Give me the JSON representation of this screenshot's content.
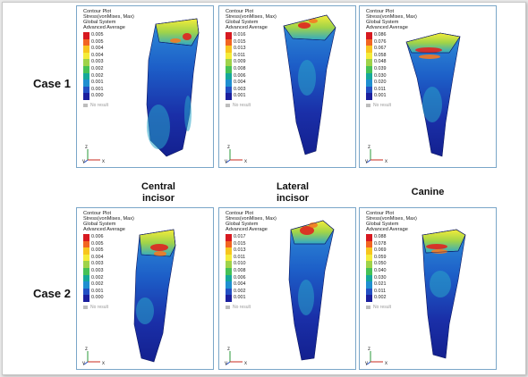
{
  "cases": [
    {
      "label": "Case 1"
    },
    {
      "label": "Case 2"
    }
  ],
  "columns": [
    {
      "line1": "Central",
      "line2": "incisor"
    },
    {
      "line1": "Lateral",
      "line2": "incisor"
    },
    {
      "line1": "Canine",
      "line2": ""
    }
  ],
  "panels": [
    {
      "header": [
        "Contour Plot",
        "Stress(vonMises, Max)",
        "Global System",
        "Advanced Average"
      ],
      "legend": [
        "0.005",
        "0.005",
        "0.004",
        "0.004",
        "0.003",
        "0.002",
        "0.002",
        "0.001",
        "0.001",
        "0.000"
      ],
      "no_result": "No result",
      "triad": {
        "z": "z",
        "y": "y",
        "x": "x"
      }
    },
    {
      "header": [
        "Contour Plot",
        "Stress(vonMises, Max)",
        "Global System",
        "Advanced Average"
      ],
      "legend": [
        "0.016",
        "0.015",
        "0.013",
        "0.011",
        "0.009",
        "0.008",
        "0.006",
        "0.004",
        "0.003",
        "0.001"
      ],
      "no_result": "No result",
      "triad": {
        "z": "z",
        "y": "y",
        "x": "x"
      }
    },
    {
      "header": [
        "Contour Plot",
        "Stress(vonMises, Max)",
        "Global System",
        "Advanced Average"
      ],
      "legend": [
        "0.086",
        "0.076",
        "0.067",
        "0.058",
        "0.048",
        "0.039",
        "0.030",
        "0.020",
        "0.011",
        "0.001"
      ],
      "no_result": "No result",
      "triad": {
        "z": "z",
        "y": "y",
        "x": "x"
      }
    },
    {
      "header": [
        "Contour Plot",
        "Stress(vonMises, Max)",
        "Global System",
        "Advanced Average"
      ],
      "legend": [
        "0.006",
        "0.005",
        "0.005",
        "0.004",
        "0.003",
        "0.003",
        "0.002",
        "0.002",
        "0.001",
        "0.000"
      ],
      "no_result": "No result",
      "triad": {
        "z": "z",
        "y": "y",
        "x": "x"
      }
    },
    {
      "header": [
        "Contour Plot",
        "Stress(vonMises, Max)",
        "Global System",
        "Advanced Average"
      ],
      "legend": [
        "0.017",
        "0.015",
        "0.013",
        "0.011",
        "0.010",
        "0.008",
        "0.006",
        "0.004",
        "0.002",
        "0.001"
      ],
      "no_result": "No result",
      "triad": {
        "z": "z",
        "y": "y",
        "x": "x"
      }
    },
    {
      "header": [
        "Contour Plot",
        "Stress(vonMises, Max)",
        "Global System",
        "Advanced Average"
      ],
      "legend": [
        "0.088",
        "0.078",
        "0.069",
        "0.059",
        "0.050",
        "0.040",
        "0.030",
        "0.021",
        "0.011",
        "0.002"
      ],
      "no_result": "No result",
      "triad": {
        "z": "z",
        "y": "y",
        "x": "x"
      }
    }
  ],
  "legend_colors": [
    "#d71920",
    "#f26522",
    "#f7c51e",
    "#f4ec3a",
    "#9fd349",
    "#46c256",
    "#15a89a",
    "#1f8fd0",
    "#2350c4",
    "#1b1f9e"
  ]
}
